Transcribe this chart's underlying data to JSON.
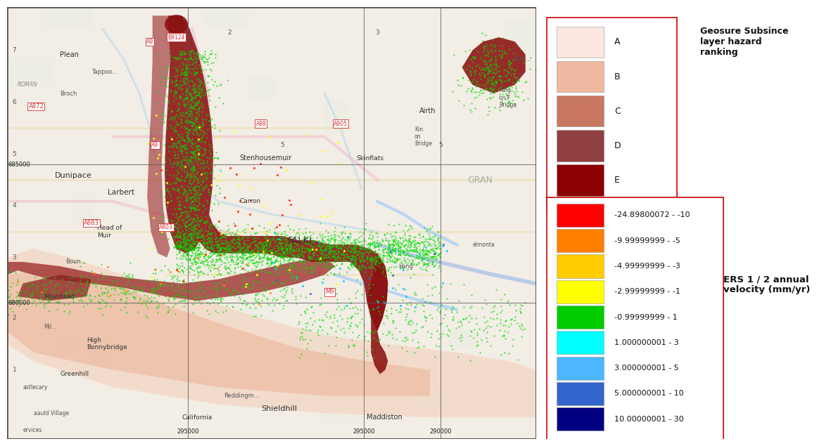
{
  "figure_width": 11.22,
  "figure_height": 6.15,
  "background_color": "#ffffff",
  "legend1_title": "Geosure Subsince\nlayer hazard\nranking",
  "legend1_items": [
    {
      "label": "A",
      "color": "#fce8e0"
    },
    {
      "label": "B",
      "color": "#f0b8a0"
    },
    {
      "label": "C",
      "color": "#c87860"
    },
    {
      "label": "D",
      "color": "#904040"
    },
    {
      "label": "E",
      "color": "#8b0000"
    }
  ],
  "legend2_title": "ERS 1 / 2 annual\nvelocity (mm/yr)",
  "legend2_items": [
    {
      "label": "-24.89800072 - -10",
      "color": "#ff0000"
    },
    {
      "label": "-9.99999999 - -5",
      "color": "#ff8000"
    },
    {
      "label": "-4.99999999 - -3",
      "color": "#ffcc00"
    },
    {
      "label": "-2.99999999 - -1",
      "color": "#ffff00"
    },
    {
      "label": "-0.99999999 - 1",
      "color": "#00cc00"
    },
    {
      "label": "1.000000001 - 3",
      "color": "#00ffff"
    },
    {
      "label": "3.000000001 - 5",
      "color": "#4db8ff"
    },
    {
      "label": "5.000000001 - 10",
      "color": "#3366cc"
    },
    {
      "label": "10.00000001 - 30",
      "color": "#000080"
    }
  ],
  "legend_border_color": "#cc0000",
  "map_bg_color": "#f5f0ea",
  "grid_color": "#444444",
  "map_border_color": "#555555"
}
